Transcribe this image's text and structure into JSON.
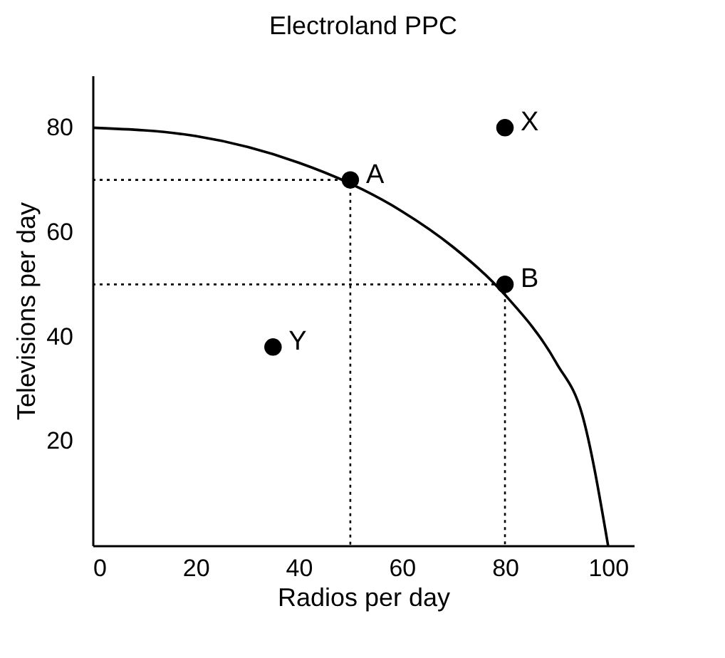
{
  "chart_data": {
    "type": "scatter",
    "title": "Electroland PPC",
    "xlabel": "Radios per day",
    "ylabel": "Televisions per day",
    "xlim": [
      0,
      105
    ],
    "ylim": [
      0,
      90
    ],
    "xticks": [
      0,
      20,
      40,
      60,
      80,
      100
    ],
    "yticks": [
      20,
      40,
      60,
      80
    ],
    "grid": false,
    "series": [
      {
        "type": "line",
        "color": "#000000",
        "line_style": "solid",
        "marker": "none",
        "x": [
          0,
          20,
          40,
          50,
          60,
          70,
          80,
          90,
          95,
          100
        ],
        "values": [
          80,
          78.4,
          73.3,
          69.3,
          64,
          57.1,
          48,
          34.9,
          25,
          0
        ]
      },
      {
        "type": "line",
        "color": "#000000",
        "line_style": "dotted",
        "marker": "none",
        "x": [
          0,
          50,
          50
        ],
        "values": [
          70,
          70,
          0
        ]
      },
      {
        "type": "line",
        "color": "#000000",
        "line_style": "dotted",
        "marker": "none",
        "x": [
          0,
          80,
          80
        ],
        "values": [
          50,
          50,
          0
        ]
      },
      {
        "color": "#000000",
        "marker": "circle",
        "x": [
          50,
          80,
          80,
          35
        ],
        "values": [
          70,
          50,
          80,
          38
        ]
      }
    ],
    "annotations": [
      {
        "text": "A",
        "x": 50,
        "y": 70
      },
      {
        "text": "B",
        "x": 80,
        "y": 50
      },
      {
        "text": "X",
        "x": 80,
        "y": 80
      },
      {
        "text": "Y",
        "x": 35,
        "y": 38
      }
    ]
  }
}
